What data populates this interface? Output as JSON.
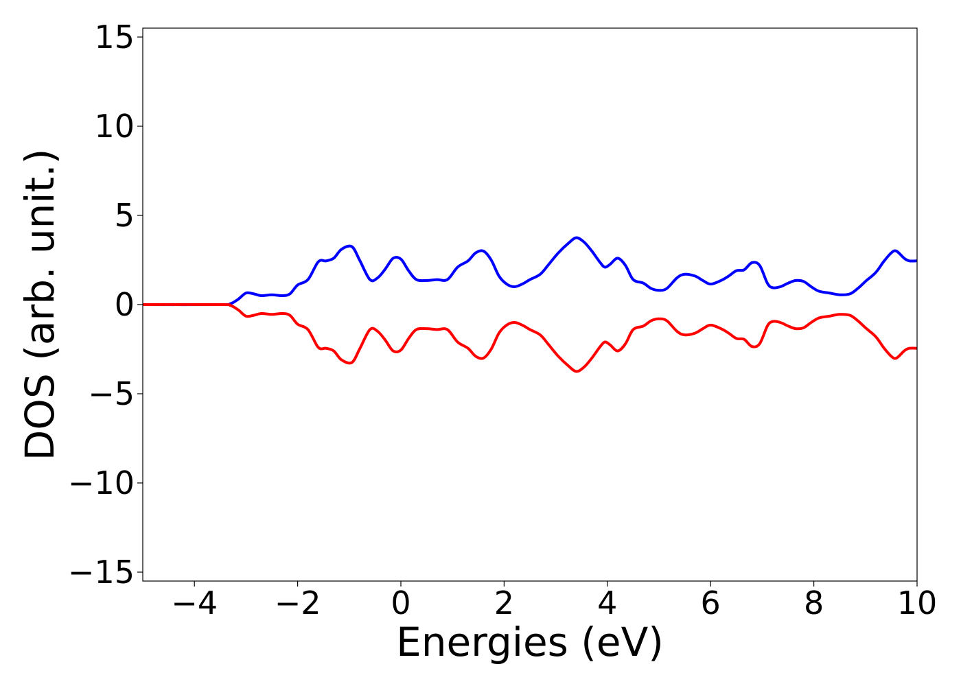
{
  "chart_data": {
    "type": "line",
    "xlabel": "Energies (eV)",
    "ylabel": "DOS (arb. unit.)",
    "xlim": [
      -5,
      10
    ],
    "ylim": [
      -15.5,
      15.5
    ],
    "xticks": [
      -4,
      -2,
      0,
      2,
      4,
      6,
      8,
      10
    ],
    "xtick_labels": [
      "−4",
      "−2",
      "0",
      "2",
      "4",
      "6",
      "8",
      "10"
    ],
    "yticks": [
      15,
      10,
      5,
      0,
      -5,
      -10,
      -15
    ],
    "ytick_labels": [
      "15",
      "10",
      "5",
      "0",
      "−5",
      "−10",
      "−15"
    ],
    "grid": false,
    "series": [
      {
        "color": "#0000ff",
        "x": [
          -5,
          -3.5,
          -3.3,
          -3.15,
          -3.0,
          -2.85,
          -2.7,
          -2.5,
          -2.3,
          -2.15,
          -2.0,
          -1.8,
          -1.6,
          -1.45,
          -1.3,
          -1.15,
          -0.95,
          -0.8,
          -0.6,
          -0.45,
          -0.3,
          -0.15,
          0.0,
          0.15,
          0.3,
          0.5,
          0.7,
          0.9,
          1.1,
          1.3,
          1.45,
          1.6,
          1.75,
          1.9,
          2.05,
          2.2,
          2.35,
          2.5,
          2.7,
          2.85,
          3.05,
          3.25,
          3.4,
          3.55,
          3.7,
          3.85,
          3.95,
          4.05,
          4.2,
          4.35,
          4.5,
          4.7,
          4.85,
          5.0,
          5.15,
          5.35,
          5.5,
          5.7,
          5.85,
          6.0,
          6.2,
          6.35,
          6.5,
          6.65,
          6.8,
          6.95,
          7.1,
          7.2,
          7.35,
          7.5,
          7.65,
          7.8,
          7.95,
          8.1,
          8.3,
          8.5,
          8.7,
          8.85,
          9.0,
          9.2,
          9.35,
          9.5,
          9.6,
          9.75,
          9.85,
          10.0
        ],
        "y": [
          0,
          0,
          0.05,
          0.3,
          0.65,
          0.6,
          0.5,
          0.55,
          0.5,
          0.6,
          1.1,
          1.4,
          2.4,
          2.45,
          2.6,
          3.1,
          3.25,
          2.5,
          1.4,
          1.5,
          2.0,
          2.6,
          2.55,
          1.9,
          1.4,
          1.35,
          1.4,
          1.4,
          2.1,
          2.45,
          2.9,
          3.0,
          2.5,
          1.6,
          1.15,
          1.0,
          1.15,
          1.4,
          1.7,
          2.2,
          2.9,
          3.45,
          3.75,
          3.5,
          3.0,
          2.4,
          2.1,
          2.25,
          2.6,
          2.2,
          1.4,
          1.2,
          0.9,
          0.8,
          0.9,
          1.5,
          1.7,
          1.6,
          1.35,
          1.15,
          1.35,
          1.6,
          1.9,
          1.95,
          2.35,
          2.2,
          1.2,
          0.95,
          1.0,
          1.2,
          1.35,
          1.3,
          1.0,
          0.75,
          0.65,
          0.55,
          0.6,
          0.9,
          1.3,
          1.8,
          2.4,
          2.9,
          3.0,
          2.6,
          2.45,
          2.45
        ]
      },
      {
        "color": "#ff0000",
        "x": [
          -5,
          -3.5,
          -3.3,
          -3.15,
          -3.0,
          -2.85,
          -2.7,
          -2.5,
          -2.3,
          -2.15,
          -2.0,
          -1.8,
          -1.6,
          -1.45,
          -1.3,
          -1.15,
          -0.95,
          -0.8,
          -0.6,
          -0.45,
          -0.3,
          -0.15,
          0.0,
          0.15,
          0.3,
          0.5,
          0.7,
          0.9,
          1.1,
          1.3,
          1.45,
          1.6,
          1.75,
          1.9,
          2.05,
          2.2,
          2.35,
          2.5,
          2.7,
          2.85,
          3.05,
          3.25,
          3.4,
          3.55,
          3.7,
          3.85,
          3.95,
          4.05,
          4.2,
          4.35,
          4.5,
          4.7,
          4.85,
          5.0,
          5.15,
          5.35,
          5.5,
          5.7,
          5.85,
          6.0,
          6.2,
          6.35,
          6.5,
          6.65,
          6.8,
          6.95,
          7.1,
          7.2,
          7.35,
          7.5,
          7.65,
          7.8,
          7.95,
          8.1,
          8.3,
          8.5,
          8.7,
          8.85,
          9.0,
          9.2,
          9.35,
          9.5,
          9.6,
          9.75,
          9.85,
          10.0
        ],
        "y": [
          0,
          0,
          -0.05,
          -0.3,
          -0.65,
          -0.6,
          -0.5,
          -0.55,
          -0.5,
          -0.6,
          -1.1,
          -1.4,
          -2.4,
          -2.45,
          -2.6,
          -3.1,
          -3.25,
          -2.5,
          -1.4,
          -1.5,
          -2.0,
          -2.6,
          -2.55,
          -1.9,
          -1.4,
          -1.35,
          -1.4,
          -1.4,
          -2.1,
          -2.45,
          -2.9,
          -3.0,
          -2.5,
          -1.6,
          -1.15,
          -1.0,
          -1.15,
          -1.4,
          -1.7,
          -2.2,
          -2.9,
          -3.45,
          -3.75,
          -3.5,
          -3.0,
          -2.4,
          -2.1,
          -2.25,
          -2.6,
          -2.2,
          -1.4,
          -1.2,
          -0.9,
          -0.8,
          -0.9,
          -1.5,
          -1.7,
          -1.6,
          -1.35,
          -1.15,
          -1.35,
          -1.6,
          -1.9,
          -1.95,
          -2.35,
          -2.2,
          -1.2,
          -0.95,
          -1.0,
          -1.2,
          -1.35,
          -1.3,
          -1.0,
          -0.75,
          -0.65,
          -0.55,
          -0.6,
          -0.9,
          -1.3,
          -1.8,
          -2.4,
          -2.9,
          -3.0,
          -2.6,
          -2.45,
          -2.45
        ]
      }
    ]
  }
}
